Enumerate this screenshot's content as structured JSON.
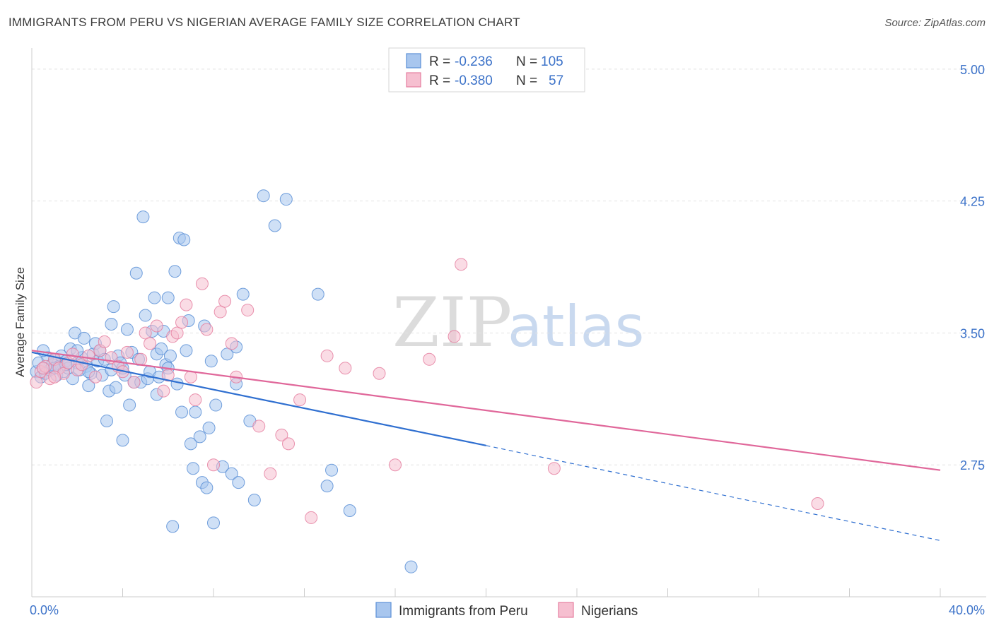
{
  "header": {
    "title": "IMMIGRANTS FROM PERU VS NIGERIAN AVERAGE FAMILY SIZE CORRELATION CHART",
    "source": "Source: ZipAtlas.com"
  },
  "watermark": {
    "zip": "ZIP",
    "atlas": "atlas"
  },
  "chart_data": {
    "type": "scatter",
    "title": "IMMIGRANTS FROM PERU VS NIGERIAN AVERAGE FAMILY SIZE CORRELATION CHART",
    "xlabel": "",
    "ylabel": "Average Family Size",
    "xlim": [
      0,
      40
    ],
    "ylim": [
      2.0,
      5.12
    ],
    "x_tick_labels": [
      "0.0%",
      "40.0%"
    ],
    "y_ticks": [
      2.75,
      3.5,
      4.25,
      5.0
    ],
    "y_tick_labels": [
      "2.75",
      "3.50",
      "4.25",
      "5.00"
    ],
    "grid": true,
    "legend_position": "top-center",
    "legend": [
      {
        "r_label": "R =",
        "r_value": "-0.236",
        "n_label": "N =",
        "n_value": "105",
        "color": "#5b8fd6",
        "fill": "#a8c6ee"
      },
      {
        "r_label": "R =",
        "r_value": "-0.380",
        "n_label": "N =",
        "n_value": "57",
        "color": "#e57fa0",
        "fill": "#f6bfd0"
      }
    ],
    "series": [
      {
        "name": "Immigrants from Peru",
        "color": "#5b8fd6",
        "fill": "#a8c6ee",
        "trend": {
          "x0": 0,
          "y0": 3.39,
          "x1": 20,
          "y1": 2.86,
          "dash_x1": 40,
          "dash_y1": 2.32
        },
        "points": [
          [
            0.2,
            3.28
          ],
          [
            0.3,
            3.33
          ],
          [
            0.4,
            3.25
          ],
          [
            0.5,
            3.3
          ],
          [
            0.6,
            3.27
          ],
          [
            0.7,
            3.36
          ],
          [
            0.8,
            3.29
          ],
          [
            0.9,
            3.32
          ],
          [
            1.0,
            3.35
          ],
          [
            1.1,
            3.26
          ],
          [
            1.2,
            3.31
          ],
          [
            1.3,
            3.37
          ],
          [
            1.4,
            3.28
          ],
          [
            1.5,
            3.34
          ],
          [
            1.6,
            3.3
          ],
          [
            1.7,
            3.41
          ],
          [
            1.8,
            3.24
          ],
          [
            1.9,
            3.5
          ],
          [
            2.0,
            3.33
          ],
          [
            2.1,
            3.29
          ],
          [
            2.2,
            3.36
          ],
          [
            2.3,
            3.47
          ],
          [
            2.4,
            3.31
          ],
          [
            2.5,
            3.2
          ],
          [
            2.6,
            3.27
          ],
          [
            2.7,
            3.38
          ],
          [
            2.8,
            3.44
          ],
          [
            2.9,
            3.34
          ],
          [
            3.0,
            3.4
          ],
          [
            3.1,
            3.26
          ],
          [
            3.2,
            3.35
          ],
          [
            3.3,
            3.0
          ],
          [
            3.4,
            3.17
          ],
          [
            3.5,
            3.29
          ],
          [
            3.6,
            3.65
          ],
          [
            3.7,
            3.19
          ],
          [
            3.8,
            3.37
          ],
          [
            3.9,
            3.33
          ],
          [
            4.0,
            2.89
          ],
          [
            4.1,
            3.26
          ],
          [
            4.2,
            3.52
          ],
          [
            4.3,
            3.09
          ],
          [
            4.4,
            3.39
          ],
          [
            4.5,
            3.22
          ],
          [
            4.6,
            3.84
          ],
          [
            4.7,
            3.35
          ],
          [
            4.8,
            3.22
          ],
          [
            4.9,
            4.16
          ],
          [
            5.0,
            3.6
          ],
          [
            5.1,
            3.24
          ],
          [
            5.2,
            3.28
          ],
          [
            5.3,
            3.51
          ],
          [
            5.4,
            3.7
          ],
          [
            5.5,
            3.38
          ],
          [
            5.6,
            3.25
          ],
          [
            5.7,
            3.41
          ],
          [
            5.8,
            3.51
          ],
          [
            5.9,
            3.32
          ],
          [
            6.0,
            3.7
          ],
          [
            6.1,
            3.37
          ],
          [
            6.2,
            2.4
          ],
          [
            6.3,
            3.85
          ],
          [
            6.4,
            3.21
          ],
          [
            6.5,
            4.04
          ],
          [
            6.6,
            3.05
          ],
          [
            6.7,
            4.03
          ],
          [
            6.8,
            3.4
          ],
          [
            6.9,
            3.57
          ],
          [
            7.0,
            2.87
          ],
          [
            7.1,
            2.73
          ],
          [
            7.2,
            3.05
          ],
          [
            7.4,
            2.91
          ],
          [
            7.5,
            2.65
          ],
          [
            7.6,
            3.54
          ],
          [
            7.7,
            2.62
          ],
          [
            7.8,
            2.96
          ],
          [
            7.9,
            3.34
          ],
          [
            8.0,
            2.42
          ],
          [
            8.1,
            3.09
          ],
          [
            8.4,
            2.74
          ],
          [
            8.6,
            3.38
          ],
          [
            8.8,
            2.7
          ],
          [
            9.0,
            3.42
          ],
          [
            9.1,
            2.65
          ],
          [
            9.3,
            3.72
          ],
          [
            9.6,
            3.0
          ],
          [
            9.8,
            2.55
          ],
          [
            10.2,
            4.28
          ],
          [
            10.7,
            4.11
          ],
          [
            11.2,
            4.26
          ],
          [
            12.6,
            3.72
          ],
          [
            13.0,
            2.63
          ],
          [
            13.2,
            2.72
          ],
          [
            14.0,
            2.49
          ],
          [
            16.7,
            2.17
          ],
          [
            3.5,
            3.55
          ],
          [
            5.5,
            3.15
          ],
          [
            9.0,
            3.21
          ],
          [
            2.0,
            3.4
          ],
          [
            1.0,
            3.3
          ],
          [
            4.0,
            3.3
          ],
          [
            6.0,
            3.3
          ],
          [
            0.5,
            3.4
          ],
          [
            2.5,
            3.28
          ],
          [
            1.5,
            3.32
          ]
        ]
      },
      {
        "name": "Nigerians",
        "color": "#e57fa0",
        "fill": "#f6bfd0",
        "trend": {
          "x0": 0,
          "y0": 3.4,
          "x1": 40,
          "y1": 2.72
        },
        "points": [
          [
            0.2,
            3.22
          ],
          [
            0.4,
            3.28
          ],
          [
            0.6,
            3.31
          ],
          [
            0.8,
            3.24
          ],
          [
            1.0,
            3.35
          ],
          [
            1.2,
            3.3
          ],
          [
            1.4,
            3.27
          ],
          [
            1.6,
            3.33
          ],
          [
            1.8,
            3.38
          ],
          [
            2.0,
            3.29
          ],
          [
            2.2,
            3.32
          ],
          [
            2.5,
            3.37
          ],
          [
            2.8,
            3.25
          ],
          [
            3.0,
            3.4
          ],
          [
            3.2,
            3.45
          ],
          [
            3.5,
            3.36
          ],
          [
            3.8,
            3.31
          ],
          [
            4.0,
            3.28
          ],
          [
            4.2,
            3.39
          ],
          [
            4.5,
            3.22
          ],
          [
            4.8,
            3.35
          ],
          [
            5.0,
            3.5
          ],
          [
            5.2,
            3.44
          ],
          [
            5.5,
            3.54
          ],
          [
            5.8,
            3.17
          ],
          [
            6.0,
            3.26
          ],
          [
            6.2,
            3.48
          ],
          [
            6.4,
            3.5
          ],
          [
            6.6,
            3.56
          ],
          [
            6.8,
            3.66
          ],
          [
            7.0,
            3.25
          ],
          [
            7.2,
            3.12
          ],
          [
            7.5,
            3.78
          ],
          [
            7.7,
            3.52
          ],
          [
            8.0,
            2.75
          ],
          [
            8.3,
            3.62
          ],
          [
            8.5,
            3.68
          ],
          [
            8.8,
            3.44
          ],
          [
            9.0,
            3.25
          ],
          [
            9.5,
            3.63
          ],
          [
            10.0,
            2.97
          ],
          [
            10.5,
            2.7
          ],
          [
            11.0,
            2.92
          ],
          [
            11.3,
            2.87
          ],
          [
            11.8,
            3.12
          ],
          [
            12.3,
            2.45
          ],
          [
            13.0,
            3.37
          ],
          [
            13.8,
            3.3
          ],
          [
            15.3,
            3.27
          ],
          [
            16.0,
            2.75
          ],
          [
            17.5,
            3.35
          ],
          [
            18.6,
            3.48
          ],
          [
            18.9,
            3.89
          ],
          [
            23.0,
            2.73
          ],
          [
            34.6,
            2.53
          ],
          [
            1.0,
            3.25
          ],
          [
            0.5,
            3.3
          ]
        ]
      }
    ]
  },
  "bottom_legend": [
    {
      "label": "Immigrants from Peru"
    },
    {
      "label": "Nigerians"
    }
  ]
}
